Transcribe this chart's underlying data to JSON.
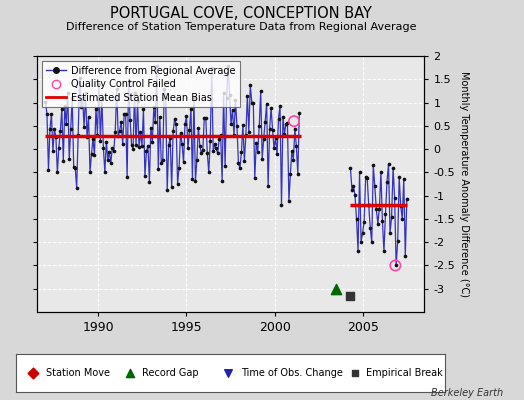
{
  "title": "PORTUGAL COVE, CONCEPTION BAY",
  "subtitle": "Difference of Station Temperature Data from Regional Average",
  "ylabel": "Monthly Temperature Anomaly Difference (°C)",
  "ylim": [
    -3.5,
    2.0
  ],
  "yticks": [
    -3.0,
    -2.5,
    -2.0,
    -1.5,
    -1.0,
    -0.5,
    0.0,
    0.5,
    1.0,
    1.5,
    2.0
  ],
  "ytick_labels": [
    "-3",
    "-2.5",
    "-2",
    "-1.5",
    "-1",
    "-0.5",
    "0",
    "0.5",
    "1",
    "1.5",
    "2"
  ],
  "xlim": [
    1986.5,
    2008.5
  ],
  "xticks": [
    1990,
    1995,
    2000,
    2005
  ],
  "bg_color": "#d8d8d8",
  "plot_bg_color": "#e8e8e8",
  "bias1_start": 1987.0,
  "bias1_end": 2001.5,
  "bias1_value": 0.28,
  "bias2_start": 2004.3,
  "bias2_end": 2007.5,
  "bias2_value": -1.2,
  "record_gap_x": 2003.5,
  "record_gap_y": -3.0,
  "qc_fail_x1": 2001.1,
  "qc_fail_y1": 0.6,
  "qc_fail_x2": 2006.85,
  "qc_fail_y2": -2.5,
  "empirical_break_x": 2004.3,
  "empirical_break_y": -3.15,
  "line_color": "#3333bb",
  "dot_color": "#111111",
  "bias_color": "#dd0000",
  "qc_color": "#ff44aa",
  "station_move_color": "#cc0000",
  "record_gap_color": "#006600",
  "time_obs_color": "#2222aa",
  "empirical_break_color": "#333333",
  "seg1_seed": 10,
  "seg2_seed": 77
}
